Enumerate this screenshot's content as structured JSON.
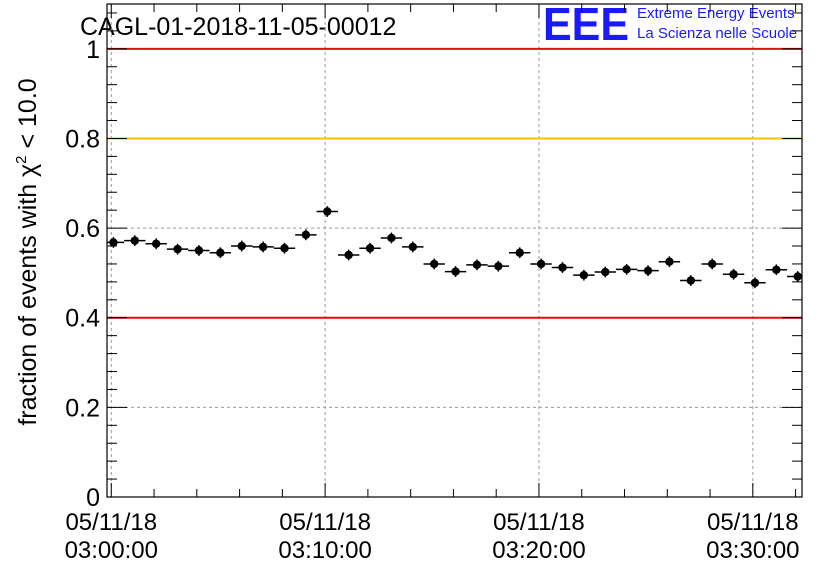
{
  "header": {
    "run_title": "CAGL-01-2018-11-05-00012"
  },
  "logo": {
    "mark": "EEE",
    "line1": "Extreme Energy Events",
    "line2": "La Scienza nelle Scuole",
    "color": "#1a1aff"
  },
  "chart_data": {
    "type": "scatter",
    "title": "CAGL-01-2018-11-05-00012",
    "ylabel": "fraction of events with χ² < 10.0",
    "ylabel_parts": [
      "fraction of events with ",
      "χ",
      "2",
      " < 10.0"
    ],
    "xlabel": "",
    "ylim": [
      0,
      1.1
    ],
    "xlim_minutes": [
      -0.2,
      32.3
    ],
    "grid": true,
    "y_ticks": [
      "0",
      "0.2",
      "0.4",
      "0.6",
      "0.8",
      "1"
    ],
    "y_tick_values": [
      0,
      0.2,
      0.4,
      0.6,
      0.8,
      1.0
    ],
    "x_tick_labels": [
      {
        "minute": 0,
        "date": "05/11/18",
        "time": "03:00:00"
      },
      {
        "minute": 10,
        "date": "05/11/18",
        "time": "03:10:00"
      },
      {
        "minute": 20,
        "date": "05/11/18",
        "time": "03:20:00"
      },
      {
        "minute": 30,
        "date": "05/11/18",
        "time": "03:30:00"
      }
    ],
    "reference_lines": [
      {
        "y": 1.0,
        "color": "#e01010"
      },
      {
        "y": 0.8,
        "color": "#ffc000"
      },
      {
        "y": 0.4,
        "color": "#e01010"
      }
    ],
    "marker_color": "#000000",
    "x_half_width_minutes": 0.5,
    "y_error": 0.012,
    "series": [
      {
        "x_minutes": [
          0.1,
          1.1,
          2.1,
          3.1,
          4.1,
          5.1,
          6.1,
          7.1,
          8.1,
          9.1,
          10.1,
          11.1,
          12.1,
          13.1,
          14.1,
          15.1,
          16.1,
          17.1,
          18.1,
          19.1,
          20.1,
          21.1,
          22.1,
          23.1,
          24.1,
          25.1,
          26.1,
          27.1,
          28.1,
          29.1,
          30.1,
          31.1,
          32.1
        ],
        "y": [
          0.568,
          0.572,
          0.565,
          0.553,
          0.55,
          0.545,
          0.56,
          0.558,
          0.555,
          0.585,
          0.637,
          0.54,
          0.555,
          0.578,
          0.558,
          0.52,
          0.503,
          0.518,
          0.515,
          0.545,
          0.52,
          0.512,
          0.495,
          0.502,
          0.508,
          0.505,
          0.525,
          0.483,
          0.52,
          0.497,
          0.478,
          0.507,
          0.492
        ]
      }
    ]
  }
}
